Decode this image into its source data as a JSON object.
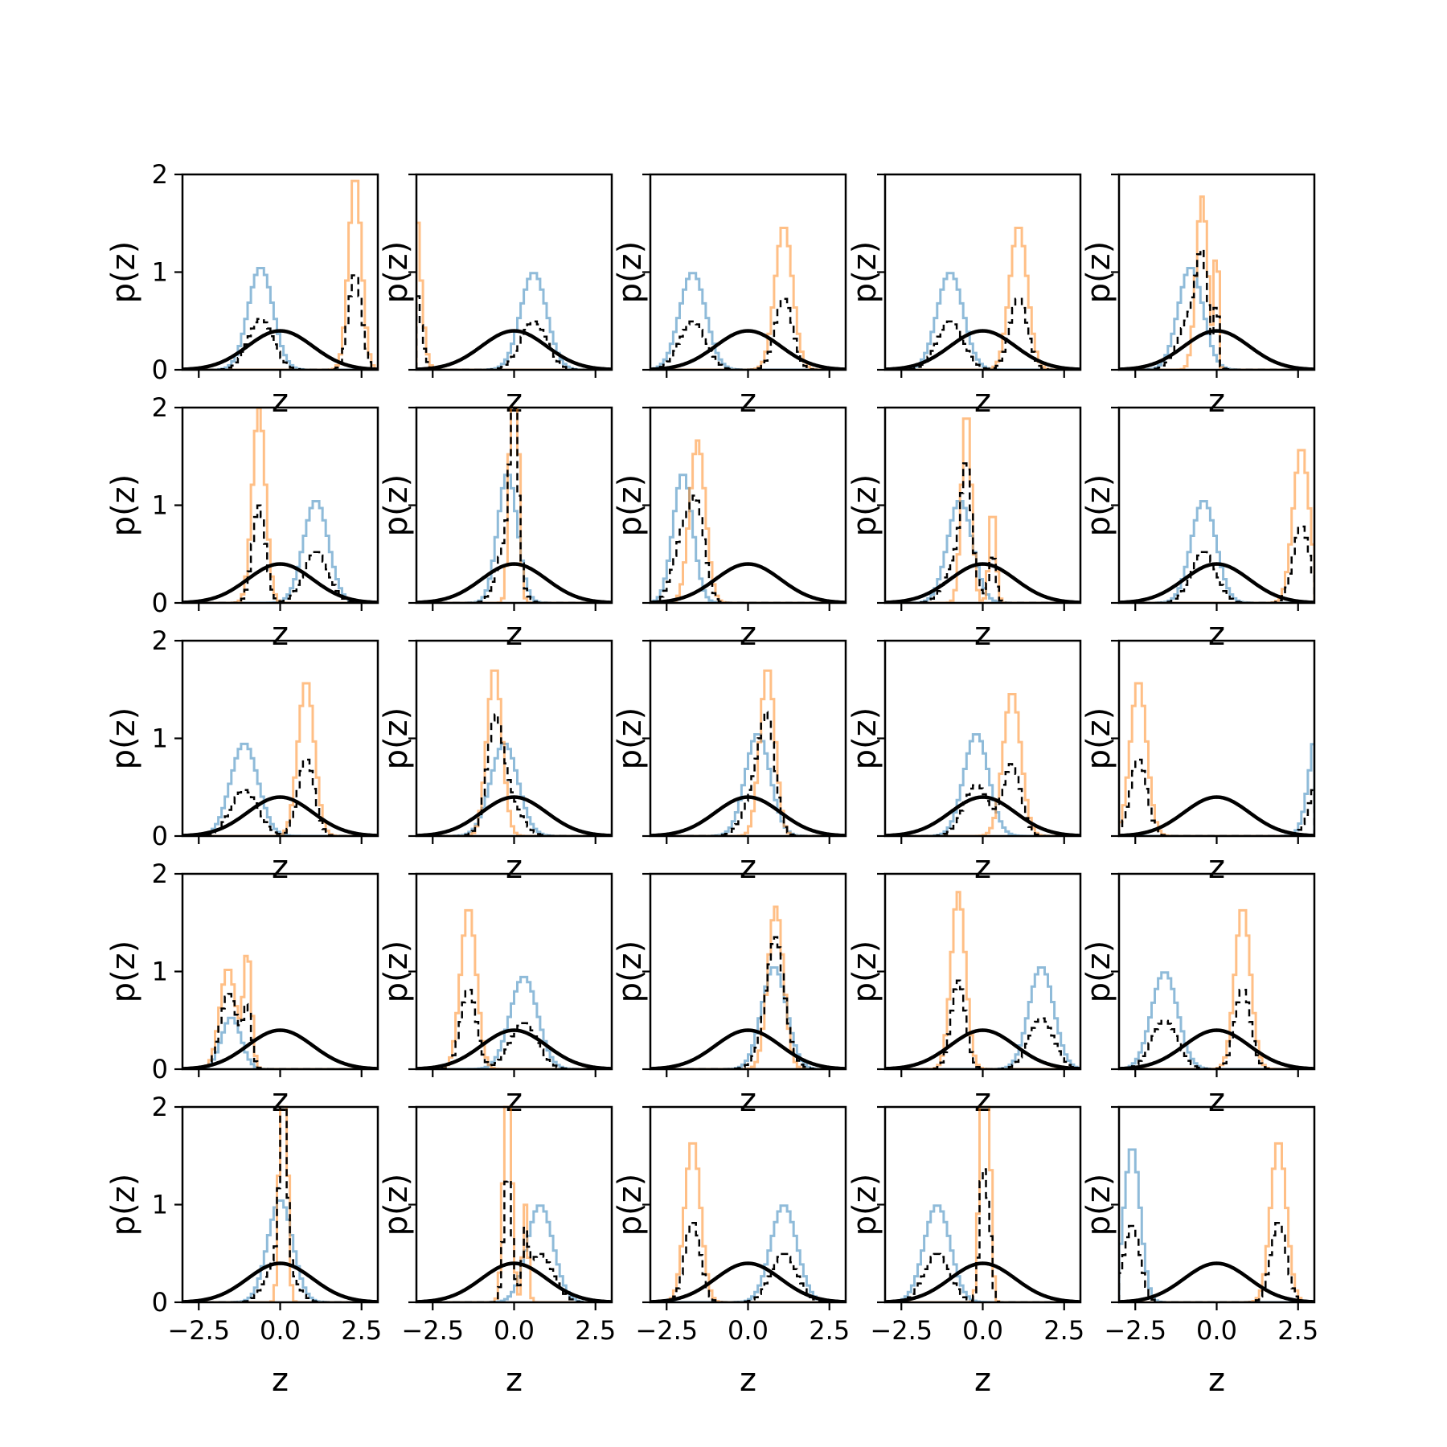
{
  "chart_data": {
    "type": "histogram-grid",
    "rows": 5,
    "cols": 5,
    "xlabel": "z",
    "ylabel": "p(z)",
    "xlim": [
      -3,
      3
    ],
    "ylim": [
      0,
      2
    ],
    "xticks": [
      -2.5,
      0.0,
      2.5
    ],
    "xtick_labels": [
      "−2.5",
      "0.0",
      "2.5"
    ],
    "yticks": [
      0,
      1,
      2
    ],
    "ytick_labels": [
      "0",
      "1",
      "2"
    ],
    "colors": {
      "class_a": "#1f77b4",
      "class_b": "#ff7f0e",
      "mixture": "#000000",
      "prior": "#000000"
    },
    "prior": {
      "type": "standard-normal",
      "peak": 0.4
    },
    "panels": [
      {
        "a": [
          {
            "m": -0.6,
            "s": 0.38,
            "w": 1
          }
        ],
        "b": [
          {
            "m": 2.3,
            "s": 0.2,
            "w": 1
          }
        ]
      },
      {
        "a": [
          {
            "m": 0.6,
            "s": 0.4,
            "w": 1
          }
        ],
        "b": [
          {
            "m": -3.1,
            "s": 0.2,
            "w": 1
          }
        ]
      },
      {
        "a": [
          {
            "m": -1.7,
            "s": 0.4,
            "w": 1
          }
        ],
        "b": [
          {
            "m": 1.1,
            "s": 0.27,
            "w": 1
          }
        ]
      },
      {
        "a": [
          {
            "m": -1.0,
            "s": 0.4,
            "w": 1
          }
        ],
        "b": [
          {
            "m": 1.1,
            "s": 0.27,
            "w": 1
          }
        ]
      },
      {
        "a": [
          {
            "m": -0.8,
            "s": 0.38,
            "w": 1
          }
        ],
        "b": [
          {
            "m": -0.45,
            "s": 0.18,
            "w": 0.8
          },
          {
            "m": 0.0,
            "s": 0.05,
            "w": 0.2
          }
        ]
      },
      {
        "a": [
          {
            "m": 1.1,
            "s": 0.38,
            "w": 1
          }
        ],
        "b": [
          {
            "m": -0.65,
            "s": 0.2,
            "w": 1
          }
        ]
      },
      {
        "a": [
          {
            "m": -0.2,
            "s": 0.3,
            "w": 1
          }
        ],
        "b": [
          {
            "m": 0.0,
            "s": 0.12,
            "w": 1
          }
        ]
      },
      {
        "a": [
          {
            "m": -2.0,
            "s": 0.3,
            "w": 1
          }
        ],
        "b": [
          {
            "m": -1.55,
            "s": 0.24,
            "w": 1
          }
        ]
      },
      {
        "a": [
          {
            "m": -0.7,
            "s": 0.38,
            "w": 1
          }
        ],
        "b": [
          {
            "m": -0.5,
            "s": 0.15,
            "w": 0.75
          },
          {
            "m": 0.3,
            "s": 0.1,
            "w": 0.25
          }
        ]
      },
      {
        "a": [
          {
            "m": -0.4,
            "s": 0.38,
            "w": 1
          }
        ],
        "b": [
          {
            "m": 2.6,
            "s": 0.25,
            "w": 1
          }
        ]
      },
      {
        "a": [
          {
            "m": -1.1,
            "s": 0.42,
            "w": 1
          }
        ],
        "b": [
          {
            "m": 0.8,
            "s": 0.25,
            "w": 1
          }
        ]
      },
      {
        "a": [
          {
            "m": -0.3,
            "s": 0.42,
            "w": 1
          }
        ],
        "b": [
          {
            "m": -0.6,
            "s": 0.23,
            "w": 1
          }
        ]
      },
      {
        "a": [
          {
            "m": 0.3,
            "s": 0.38,
            "w": 1
          }
        ],
        "b": [
          {
            "m": 0.6,
            "s": 0.23,
            "w": 1
          }
        ]
      },
      {
        "a": [
          {
            "m": -0.2,
            "s": 0.38,
            "w": 1
          }
        ],
        "b": [
          {
            "m": 0.9,
            "s": 0.27,
            "w": 1
          }
        ]
      },
      {
        "a": [
          {
            "m": 3.2,
            "s": 0.3,
            "w": 1
          }
        ],
        "b": [
          {
            "m": -2.4,
            "s": 0.25,
            "w": 1
          }
        ]
      },
      {
        "a": [
          {
            "m": -1.5,
            "s": 0.3,
            "w": 0.4
          }
        ],
        "b": [
          {
            "m": -1.6,
            "s": 0.25,
            "w": 0.65
          },
          {
            "m": -1.0,
            "s": 0.12,
            "w": 0.35
          }
        ]
      },
      {
        "a": [
          {
            "m": 0.3,
            "s": 0.42,
            "w": 1
          }
        ],
        "b": [
          {
            "m": -1.4,
            "s": 0.24,
            "w": 1
          }
        ]
      },
      {
        "a": [
          {
            "m": 0.8,
            "s": 0.38,
            "w": 1
          }
        ],
        "b": [
          {
            "m": 0.85,
            "s": 0.24,
            "w": 1
          }
        ]
      },
      {
        "a": [
          {
            "m": 1.8,
            "s": 0.38,
            "w": 1
          }
        ],
        "b": [
          {
            "m": -0.75,
            "s": 0.22,
            "w": 1
          }
        ]
      },
      {
        "a": [
          {
            "m": -1.6,
            "s": 0.4,
            "w": 1
          }
        ],
        "b": [
          {
            "m": 0.8,
            "s": 0.24,
            "w": 1
          }
        ]
      },
      {
        "a": [
          {
            "m": 0.0,
            "s": 0.38,
            "w": 1
          }
        ],
        "b": [
          {
            "m": 0.1,
            "s": 0.1,
            "w": 1
          }
        ]
      },
      {
        "a": [
          {
            "m": 0.8,
            "s": 0.4,
            "w": 1
          }
        ],
        "b": [
          {
            "m": -0.2,
            "s": 0.12,
            "w": 0.8
          },
          {
            "m": 0.35,
            "s": 0.08,
            "w": 0.2
          }
        ]
      },
      {
        "a": [
          {
            "m": 1.1,
            "s": 0.4,
            "w": 1
          }
        ],
        "b": [
          {
            "m": -1.7,
            "s": 0.24,
            "w": 1
          }
        ]
      },
      {
        "a": [
          {
            "m": -1.4,
            "s": 0.4,
            "w": 1
          }
        ],
        "b": [
          {
            "m": 0.0,
            "s": 0.1,
            "w": 0.7
          },
          {
            "m": 0.2,
            "s": 0.08,
            "w": 0.3
          }
        ]
      },
      {
        "a": [
          {
            "m": -2.6,
            "s": 0.25,
            "w": 1
          }
        ],
        "b": [
          {
            "m": 1.9,
            "s": 0.24,
            "w": 1
          }
        ]
      }
    ]
  }
}
